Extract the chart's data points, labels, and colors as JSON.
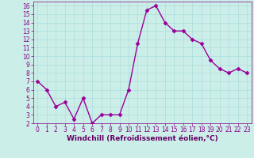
{
  "x": [
    0,
    1,
    2,
    3,
    4,
    5,
    6,
    7,
    8,
    9,
    10,
    11,
    12,
    13,
    14,
    15,
    16,
    17,
    18,
    19,
    20,
    21,
    22,
    23
  ],
  "y": [
    7,
    6,
    4,
    4.5,
    2.5,
    5,
    2,
    3,
    3,
    3,
    6,
    11.5,
    15.5,
    16,
    14,
    13,
    13,
    12,
    11.5,
    9.5,
    8.5,
    8,
    8.5,
    8
  ],
  "line_color": "#990099",
  "marker": "D",
  "marker_size": 2.5,
  "bg_color": "#cceee8",
  "grid_color": "#aadddd",
  "xlabel": "Windchill (Refroidissement éolien,°C)",
  "xlabel_color": "#660066",
  "tick_color": "#880088",
  "ylim": [
    2,
    16.5
  ],
  "xlim": [
    -0.5,
    23.5
  ],
  "yticks": [
    2,
    3,
    4,
    5,
    6,
    7,
    8,
    9,
    10,
    11,
    12,
    13,
    14,
    15,
    16
  ],
  "xticks": [
    0,
    1,
    2,
    3,
    4,
    5,
    6,
    7,
    8,
    9,
    10,
    11,
    12,
    13,
    14,
    15,
    16,
    17,
    18,
    19,
    20,
    21,
    22,
    23
  ],
  "tick_fontsize": 5.5,
  "xlabel_fontsize": 6.5,
  "linewidth": 1.0
}
